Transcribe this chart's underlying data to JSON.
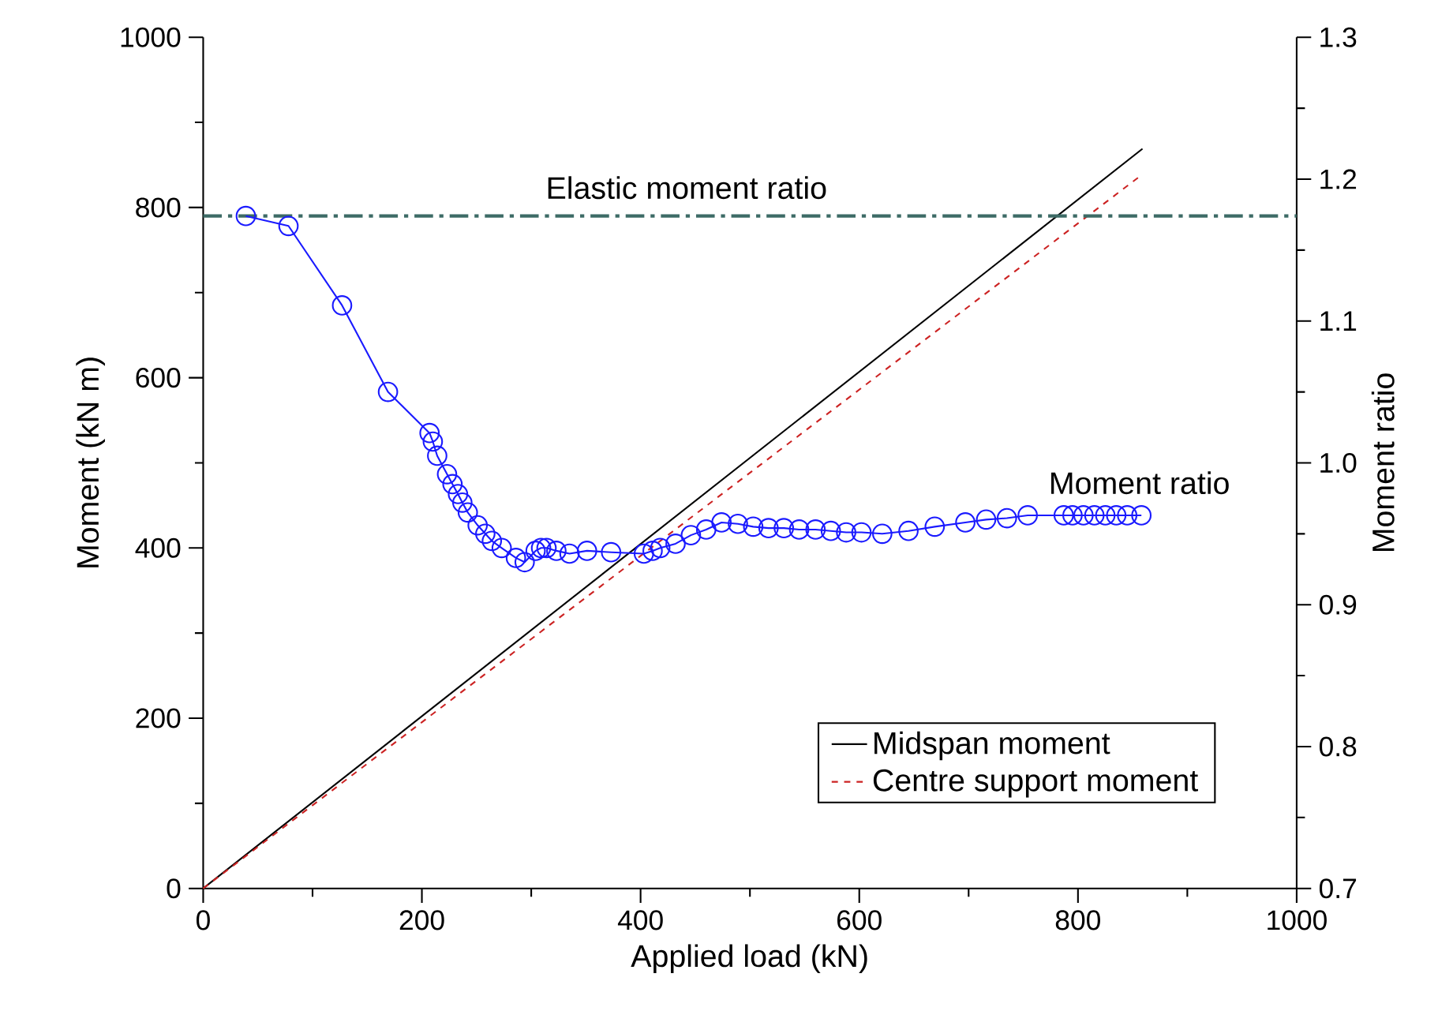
{
  "chart_data": {
    "type": "line",
    "xlabel": "Applied load (kN)",
    "ylabel": "Moment (kN m)",
    "y2label": "Moment ratio",
    "xlim": [
      0,
      1000
    ],
    "xticks": [
      0,
      200,
      400,
      600,
      800,
      1000
    ],
    "ylim": [
      0,
      1000
    ],
    "yticks": [
      0,
      200,
      400,
      600,
      800,
      1000
    ],
    "y2lim": [
      0.7,
      1.3
    ],
    "y2ticks": [
      0.7,
      0.8,
      0.9,
      {
        "value": 1.0,
        "label": "1.0"
      },
      1.1,
      1.2,
      1.3
    ],
    "legend": "bottom right",
    "grid": false,
    "series": [
      {
        "name": "Midspan moment",
        "color": "#000000",
        "line_style": "solid",
        "marker": "none",
        "x": [
          0,
          859
        ],
        "values": [
          0,
          869
        ]
      },
      {
        "name": "Centre support moment",
        "color": "#cc2222",
        "line_style": "dashed",
        "marker": "none",
        "x": [
          0,
          859
        ],
        "values": [
          0,
          839
        ]
      },
      {
        "name": "Moment ratio",
        "color": "#1a1aff",
        "axis": "y2",
        "line_style": "solid",
        "marker": "circle",
        "x": [
          39,
          78,
          127,
          169,
          207,
          210,
          214,
          223,
          228,
          233,
          237,
          242,
          251,
          258,
          264,
          273,
          286,
          294,
          304,
          309,
          314,
          323,
          335,
          351,
          373,
          403,
          411,
          418,
          432,
          446,
          460,
          474,
          489,
          503,
          517,
          531,
          545,
          560,
          574,
          588,
          602,
          621,
          645,
          669,
          697,
          716,
          735,
          754,
          787,
          795,
          805,
          815,
          825,
          835,
          845,
          858
        ],
        "values": [
          1.174,
          1.167,
          1.111,
          1.05,
          1.021,
          1.015,
          1.005,
          0.992,
          0.985,
          0.978,
          0.972,
          0.965,
          0.956,
          0.95,
          0.945,
          0.94,
          0.933,
          0.93,
          0.938,
          0.94,
          0.94,
          0.938,
          0.936,
          0.938,
          0.937,
          0.936,
          0.938,
          0.94,
          0.943,
          0.949,
          0.953,
          0.958,
          0.957,
          0.955,
          0.954,
          0.954,
          0.953,
          0.953,
          0.952,
          0.951,
          0.951,
          0.95,
          0.952,
          0.955,
          0.958,
          0.96,
          0.961,
          0.963,
          0.963,
          0.963,
          0.963,
          0.963,
          0.963,
          0.963,
          0.963,
          0.963
        ]
      }
    ],
    "ref_lines": [
      {
        "axis": "y2",
        "value": 1.174,
        "label": "Elastic moment ratio",
        "color": "#3d6b66",
        "line_style": "dashdot"
      }
    ]
  }
}
